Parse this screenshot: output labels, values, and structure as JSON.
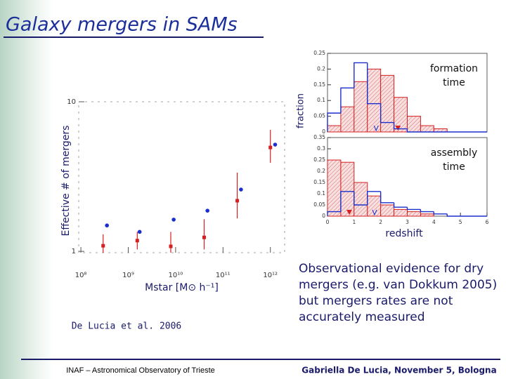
{
  "title": "Galaxy mergers in SAMs",
  "citation": "De Lucia et al. 2006",
  "body": "Observational evidence for dry mergers (e.g. van Dokkum 2005) but mergers rates are not accurately measured",
  "footer": {
    "left": "INAF – Astronomical Observatory of Trieste",
    "right": "Gabriella De Lucia, November 5, Bologna"
  },
  "chart_data": [
    {
      "type": "scatter",
      "x_label": "Mstar [M⊙ h⁻¹]",
      "y_label": "Effective # of mergers",
      "xscale": "log",
      "yscale": "log",
      "xlim": [
        90000000,
        2000000000000
      ],
      "ylim": [
        0.98,
        10
      ],
      "xticks": [
        {
          "value": 100000000,
          "label": "10⁸"
        },
        {
          "value": 1000000000,
          "label": "10⁹"
        },
        {
          "value": 10000000000,
          "label": "10¹⁰"
        },
        {
          "value": 100000000000,
          "label": "10¹¹"
        },
        {
          "value": 1000000000000,
          "label": "10¹²"
        }
      ],
      "yticks": [
        1,
        10
      ],
      "series": [
        {
          "color": "#d42020",
          "marker": "square",
          "x": [
            295000000,
            1550000000,
            7900000000,
            40000000000,
            200000000000,
            1000000000000
          ],
          "values": [
            1.09,
            1.18,
            1.08,
            1.24,
            2.18,
            4.95
          ],
          "lower": [
            0.98,
            1.03,
            0.98,
            1.03,
            1.66,
            3.91
          ],
          "upper": [
            1.3,
            1.35,
            1.35,
            1.64,
            3.36,
            6.49
          ]
        },
        {
          "color": "#1a2fcc",
          "marker": "circle",
          "x": [
            355000000,
            1740000000,
            9100000000,
            47000000000,
            240000000000,
            1260000000000
          ],
          "values": [
            1.49,
            1.35,
            1.63,
            1.87,
            2.59,
            5.17
          ]
        }
      ]
    },
    {
      "type": "histogram",
      "label": "formation time",
      "y_label": "fraction",
      "xlim": [
        0,
        6
      ],
      "ylim": [
        0,
        0.25
      ],
      "yticks": [
        0,
        0.05,
        0.1,
        0.15,
        0.2,
        0.25
      ],
      "bins": [
        0,
        0.5,
        1,
        1.5,
        2,
        2.5,
        3,
        3.5,
        4,
        4.5,
        5,
        5.5,
        6
      ],
      "series": [
        {
          "color": "#d42020",
          "hatch": true,
          "values": [
            0.02,
            0.08,
            0.16,
            0.2,
            0.18,
            0.11,
            0.05,
            0.02,
            0.01,
            0,
            0,
            0
          ],
          "median": 2.65
        },
        {
          "color": "#1a2fcc",
          "hatch": false,
          "values": [
            0.06,
            0.14,
            0.22,
            0.09,
            0.03,
            0.01,
            0,
            0,
            0,
            0,
            0,
            0
          ],
          "median": 1.83
        }
      ]
    },
    {
      "type": "histogram",
      "label": "assembly time",
      "x_label": "redshift",
      "xlim": [
        0,
        6
      ],
      "ylim": [
        0,
        0.35
      ],
      "xticks": [
        0,
        1,
        2,
        3,
        4,
        5,
        6
      ],
      "yticks": [
        0,
        0.05,
        0.1,
        0.15,
        0.2,
        0.25,
        0.3,
        0.35
      ],
      "bins": [
        0,
        0.5,
        1,
        1.5,
        2,
        2.5,
        3,
        3.5,
        4,
        4.5,
        5,
        5.5,
        6
      ],
      "series": [
        {
          "color": "#d42020",
          "hatch": true,
          "values": [
            0.25,
            0.24,
            0.15,
            0.09,
            0.05,
            0.03,
            0.02,
            0.01,
            0,
            0,
            0,
            0
          ],
          "median": 0.82
        },
        {
          "color": "#1a2fcc",
          "hatch": false,
          "values": [
            0.02,
            0.11,
            0.05,
            0.11,
            0.06,
            0.04,
            0.03,
            0.02,
            0.01,
            0,
            0,
            0
          ],
          "median": 1.77
        }
      ]
    }
  ]
}
